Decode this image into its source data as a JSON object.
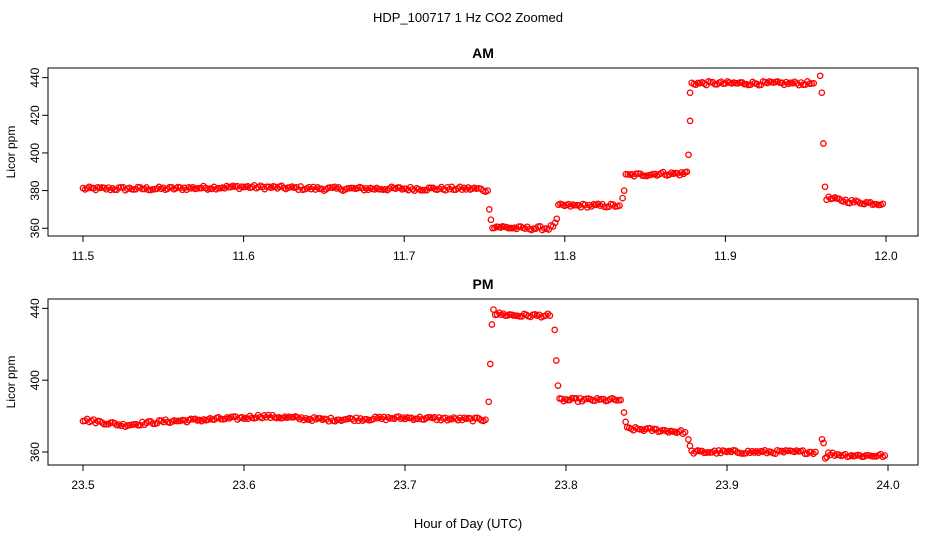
{
  "figure_title": "HDP_100717  1 Hz CO2 Zoomed",
  "xlabel": "Hour of Day (UTC)",
  "colors": {
    "points": "#ff0000",
    "axes": "#000000"
  },
  "chart_data": [
    {
      "type": "scatter",
      "title": "AM",
      "ylabel": "Licor ppm",
      "xlim": [
        11.5,
        12.0
      ],
      "ylim": [
        358,
        443
      ],
      "xticks": [
        "11.5",
        "11.6",
        "11.7",
        "11.8",
        "11.9",
        "12.0"
      ],
      "yticks": [
        "360",
        "380",
        "400",
        "420",
        "440"
      ],
      "marker": "open-circle",
      "series": [
        {
          "x": [
            11.5,
            11.55,
            11.6,
            11.65,
            11.7,
            11.745,
            11.752,
            11.753,
            11.754,
            11.755,
            11.77,
            11.79,
            11.794,
            11.795,
            11.796,
            11.81,
            11.834,
            11.836,
            11.837,
            11.838,
            11.86,
            11.874,
            11.876,
            11.877,
            11.878,
            11.878,
            11.879,
            11.9,
            11.93,
            11.955,
            11.959,
            11.96,
            11.961,
            11.962,
            11.963,
            11.98,
            11.998
          ],
          "y": [
            381,
            381,
            382,
            381,
            381,
            381,
            380,
            370,
            364,
            361,
            360,
            360,
            362,
            365,
            372,
            372,
            372,
            376,
            380,
            388,
            389,
            389,
            390,
            399,
            417,
            432,
            437,
            437,
            437,
            437,
            441,
            432,
            405,
            382,
            376,
            374,
            373
          ]
        }
      ]
    },
    {
      "type": "scatter",
      "title": "PM",
      "ylabel": "Licor ppm",
      "xlim": [
        23.5,
        24.0
      ],
      "ylim": [
        355,
        443
      ],
      "xticks": [
        "23.5",
        "23.6",
        "23.7",
        "23.8",
        "23.9",
        "24.0"
      ],
      "yticks": [
        "360",
        "400",
        "440"
      ],
      "marker": "open-circle",
      "series": [
        {
          "x": [
            23.5,
            23.525,
            23.55,
            23.6,
            23.61,
            23.65,
            23.7,
            23.75,
            23.752,
            23.753,
            23.754,
            23.755,
            23.756,
            23.77,
            23.79,
            23.793,
            23.794,
            23.795,
            23.796,
            23.81,
            23.834,
            23.836,
            23.837,
            23.838,
            23.86,
            23.874,
            23.876,
            23.877,
            23.878,
            23.9,
            23.93,
            23.955,
            23.959,
            23.96,
            23.961,
            23.963,
            23.98,
            23.998
          ],
          "y": [
            378,
            375,
            377,
            379,
            380,
            378,
            379,
            378,
            388,
            409,
            431,
            440,
            437,
            436,
            436,
            428,
            411,
            397,
            389,
            389,
            389,
            382,
            376,
            373,
            372,
            371,
            367,
            363,
            360,
            360,
            360,
            360,
            367,
            365,
            357,
            359,
            358,
            358
          ]
        }
      ]
    }
  ]
}
